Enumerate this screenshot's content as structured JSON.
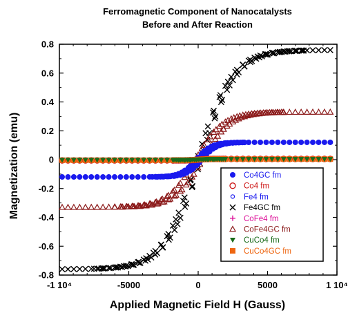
{
  "chart_data": {
    "type": "scatter",
    "title": "Ferromagnetic Component of Nanocatalysts",
    "subtitle": "Before and After Reaction",
    "xlabel": "Applied Magnetic Field H (Gauss)",
    "ylabel": "Magnetization (emu)",
    "xlim": [
      -10000,
      10000
    ],
    "ylim": [
      -0.8,
      0.8
    ],
    "x_ticks": [
      -10000,
      -5000,
      0,
      5000,
      10000
    ],
    "x_tick_labels": [
      "-1 10⁴",
      "-5000",
      "0",
      "5000",
      "1 10⁴"
    ],
    "y_ticks": [
      -0.8,
      -0.6,
      -0.4,
      -0.2,
      0,
      0.2,
      0.4,
      0.6,
      0.8
    ],
    "y_tick_labels": [
      "-0.8",
      "-0.6",
      "-0.4",
      "-0.2",
      "0",
      "0.2",
      "0.4",
      "0.6",
      "0.8"
    ],
    "grid": false,
    "legend_position": "lower-right",
    "series": [
      {
        "name": "Co4GC fm",
        "marker": "filled-circle",
        "color": "#1a1aee",
        "Ms": 0.12,
        "Hc": 150,
        "H0": 1100
      },
      {
        "name": "Co4 fm",
        "marker": "open-circle",
        "color": "#cc1111",
        "Ms": 0.005,
        "Hc": 0,
        "H0": 600
      },
      {
        "name": "Fe4 fm",
        "marker": "small-open-circle",
        "color": "#1a1aee",
        "Ms": 0.004,
        "Hc": 0,
        "H0": 600
      },
      {
        "name": "Fe4GC fm",
        "marker": "x",
        "color": "#000000",
        "Ms": 0.76,
        "Hc": 80,
        "H0": 2500
      },
      {
        "name": "CoFe4 fm",
        "marker": "plus",
        "color": "#dd1199",
        "Ms": 0.004,
        "Hc": 0,
        "H0": 600
      },
      {
        "name": "CoFe4GC fm",
        "marker": "open-triangle",
        "color": "#8b1a1a",
        "Ms": 0.33,
        "Hc": 200,
        "H0": 2000
      },
      {
        "name": "CuCo4 fm",
        "marker": "filled-triangle-down",
        "color": "#1a6b1a",
        "Ms": 0.003,
        "Hc": 0,
        "H0": 600
      },
      {
        "name": "CuCo4GC fm",
        "marker": "filled-square",
        "color": "#ee6611",
        "Ms": 0.004,
        "Hc": 0,
        "H0": 600
      }
    ]
  }
}
